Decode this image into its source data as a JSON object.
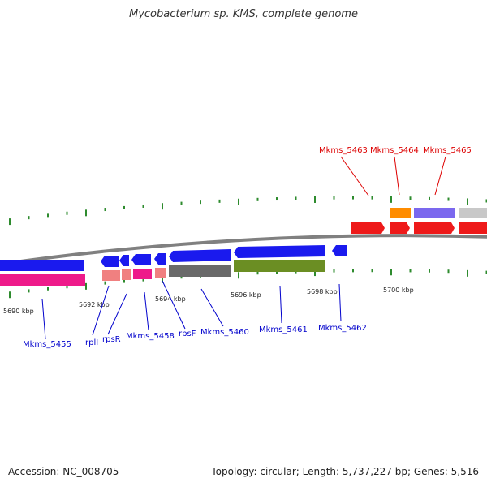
{
  "title": "Mycobacterium sp. KMS, complete genome",
  "footer": {
    "accession": "Accession: NC_008705",
    "stats": "Topology: circular; Length: 5,737,227 bp; Genes: 5,516"
  },
  "colors": {
    "backbone": "#808080",
    "tick": "#2e8b2e",
    "forward_label": "#dd0000",
    "reverse_label": "#0000cc",
    "blue": "#1a1aee",
    "red": "#ee1a1a",
    "magenta": "#ee1a8a",
    "salmon": "#f08080",
    "dark_gray": "#6a6a6a",
    "olive": "#6b8e23",
    "orange": "#ff8c00",
    "lavender": "#7b68ee",
    "light_gray": "#c8c8c8"
  },
  "axis_labels": [
    "5690 kbp",
    "5692 kbp",
    "5694 kbp",
    "5696 kbp",
    "5698 kbp",
    "5700 kbp"
  ],
  "forward_labels": [
    "Mkms_5463",
    "Mkms_5464",
    "Mkms_5465"
  ],
  "reverse_labels": [
    "Mkms_5455",
    "rplI",
    "rpsR",
    "Mkms_5458",
    "rpsF",
    "Mkms_5460",
    "Mkms_5461",
    "Mkms_5462"
  ]
}
